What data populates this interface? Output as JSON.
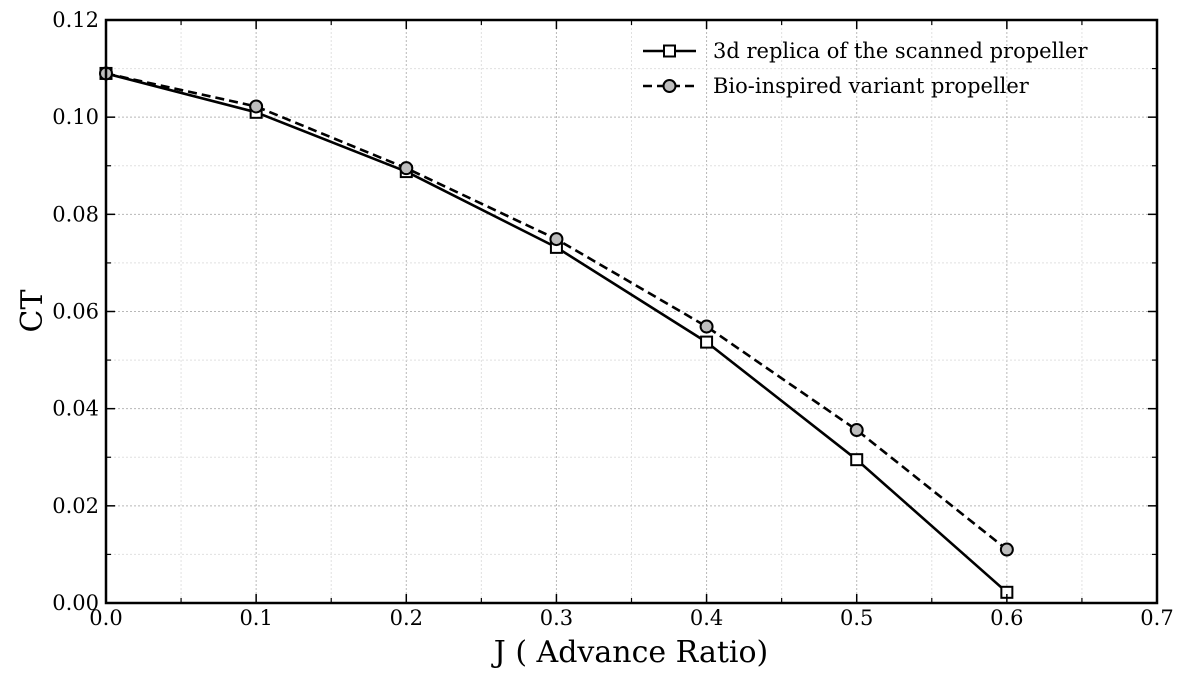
{
  "chart_data": {
    "type": "line",
    "title": "",
    "xlabel": "J ( Advance Ratio)",
    "ylabel": "CT",
    "xlim": [
      0.0,
      0.7
    ],
    "ylim": [
      0.0,
      0.12
    ],
    "xticks": [
      "0.0",
      "0.1",
      "0.2",
      "0.3",
      "0.4",
      "0.5",
      "0.6",
      "0.7"
    ],
    "yticks": [
      "0.00",
      "0.02",
      "0.04",
      "0.06",
      "0.08",
      "0.10",
      "0.12"
    ],
    "grid": true,
    "legend_position": "top-right",
    "series": [
      {
        "name": "3d replica of the scanned propeller",
        "line_style": "solid",
        "marker": "square",
        "color": "#000000",
        "x": [
          0.0,
          0.1,
          0.2,
          0.3,
          0.4,
          0.5,
          0.6
        ],
        "y": [
          0.109,
          0.101,
          0.0888,
          0.0732,
          0.0537,
          0.0295,
          0.0022
        ]
      },
      {
        "name": "Bio-inspired variant propeller",
        "line_style": "dashed",
        "marker": "circle",
        "color": "#000000",
        "x": [
          0.0,
          0.1,
          0.2,
          0.3,
          0.4,
          0.5,
          0.6
        ],
        "y": [
          0.109,
          0.1022,
          0.0895,
          0.0749,
          0.0569,
          0.0356,
          0.011
        ]
      }
    ]
  }
}
